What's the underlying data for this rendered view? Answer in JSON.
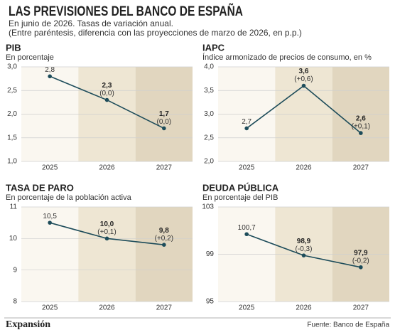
{
  "header": {
    "title": "LAS PREVISIONES DEL BANCO DE ESPAÑA",
    "subtitle": "En junio de 2026. Tasas de variación anual.",
    "note": "(Entre paréntesis, diferencia con las proyecciones de marzo de 2026, en p.p.)"
  },
  "chart_data": [
    {
      "type": "line",
      "title": "PIB",
      "subtitle": "En porcentaje",
      "categories": [
        "2025",
        "2026",
        "2027"
      ],
      "values": [
        2.8,
        2.3,
        1.7
      ],
      "value_labels": [
        "2,8",
        "2,3",
        "1,7"
      ],
      "change_labels": [
        null,
        "(0,0)",
        "(0,0)"
      ],
      "color": "#1d4c5a",
      "ylim": [
        1,
        3
      ],
      "yticks": [
        {
          "value": 1,
          "label": "1,0"
        },
        {
          "value": 1.5,
          "label": "1,5"
        },
        {
          "value": 2,
          "label": "2,0"
        },
        {
          "value": 2.5,
          "label": "2,5"
        },
        {
          "value": 3,
          "label": "3,0"
        }
      ],
      "grid": true
    },
    {
      "type": "line",
      "title": "IAPC",
      "subtitle": "Índice armonizado de precios de consumo, en %",
      "categories": [
        "2025",
        "2026",
        "2027"
      ],
      "values": [
        2.7,
        3.6,
        2.6
      ],
      "value_labels": [
        "2,7",
        "3,6",
        "2,6"
      ],
      "change_labels": [
        null,
        "(+0,6)",
        "(+0,1)"
      ],
      "color": "#1d4c5a",
      "ylim": [
        2,
        4
      ],
      "yticks": [
        {
          "value": 2,
          "label": "2,0"
        },
        {
          "value": 2.5,
          "label": "2,5"
        },
        {
          "value": 3,
          "label": "3,0"
        },
        {
          "value": 3.5,
          "label": "3,5"
        },
        {
          "value": 4,
          "label": "4,0"
        }
      ],
      "grid": true
    },
    {
      "type": "line",
      "title": "TASA DE PARO",
      "subtitle": "En porcentaje de la población activa",
      "categories": [
        "2025",
        "2026",
        "2027"
      ],
      "values": [
        10.5,
        10.0,
        9.8
      ],
      "value_labels": [
        "10,5",
        "10,0",
        "9,8"
      ],
      "change_labels": [
        null,
        "(+0,1)",
        "(+0,2)"
      ],
      "color": "#1d4c5a",
      "ylim": [
        8,
        11
      ],
      "yticks": [
        8,
        9,
        10,
        11
      ],
      "grid": true
    },
    {
      "type": "line",
      "title": "DEUDA PÚBLICA",
      "subtitle": "En porcentaje del PIB",
      "categories": [
        "2025",
        "2026",
        "2027"
      ],
      "values": [
        100.7,
        98.9,
        97.9
      ],
      "value_labels": [
        "100,7",
        "98,9",
        "97,9"
      ],
      "change_labels": [
        null,
        "(-0,3)",
        "(-0,2)"
      ],
      "color": "#1d4c5a",
      "ylim": [
        95,
        103
      ],
      "yticks": [
        95,
        99,
        103
      ],
      "grid": true
    }
  ],
  "footer": {
    "brand": "Expansión",
    "source": "Fuente: Banco de España"
  }
}
